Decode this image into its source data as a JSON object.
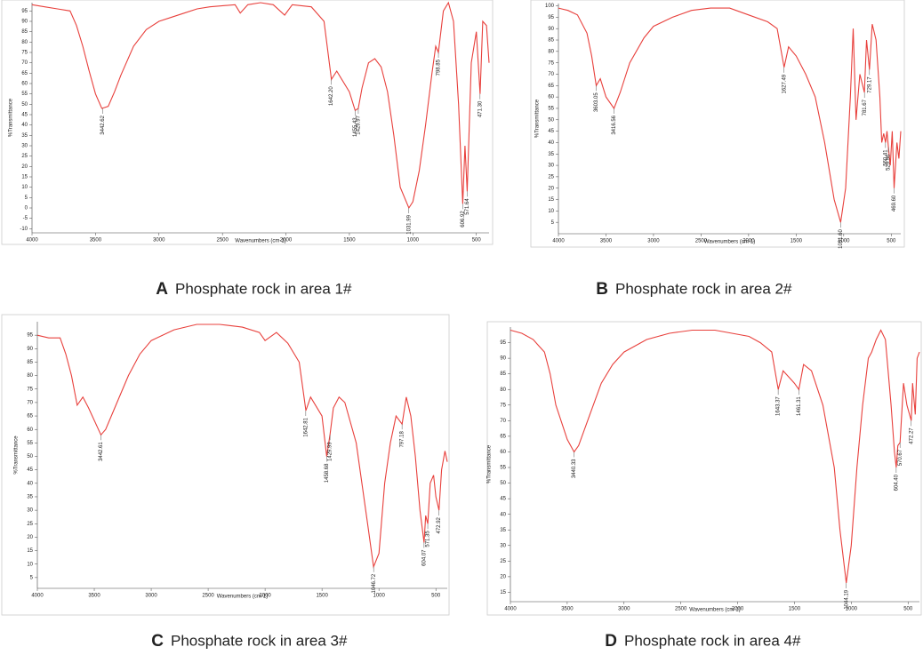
{
  "chart_data": [
    {
      "type": "line",
      "label": "A",
      "title": "Phosphate rock in area 1#",
      "x_label": "Wavenumbers (cm-1)",
      "y_label": "%Transmittance",
      "color": "#e8403c",
      "x": [
        4000,
        3900,
        3800,
        3700,
        3650,
        3600,
        3550,
        3500,
        3450,
        3400,
        3350,
        3300,
        3200,
        3100,
        3000,
        2900,
        2800,
        2700,
        2600,
        2400,
        2360,
        2300,
        2200,
        2100,
        2010,
        1950,
        1800,
        1700,
        1642,
        1600,
        1500,
        1455,
        1430,
        1400,
        1350,
        1300,
        1250,
        1200,
        1150,
        1100,
        1032,
        1000,
        950,
        900,
        850,
        820,
        799,
        760,
        720,
        680,
        640,
        607,
        590,
        572,
        540,
        500,
        471,
        450,
        420,
        400
      ],
      "values": [
        98,
        97,
        96,
        95,
        88,
        78,
        66,
        55,
        48,
        49,
        56,
        64,
        78,
        86,
        90,
        92,
        94,
        96,
        97,
        98,
        94,
        98,
        99,
        98,
        93,
        98,
        97,
        90,
        62,
        66,
        56,
        47,
        48,
        58,
        70,
        72,
        68,
        56,
        35,
        10,
        0,
        3,
        18,
        40,
        65,
        78,
        75,
        95,
        99,
        90,
        50,
        2,
        30,
        8,
        70,
        85,
        55,
        90,
        88,
        70
      ],
      "xlim": [
        4000,
        400
      ],
      "ylim": [
        -12,
        99
      ],
      "xticks": [
        4000,
        3500,
        3000,
        2500,
        2000,
        1500,
        1000,
        500
      ],
      "yticks": [
        -10,
        -5,
        0,
        5,
        10,
        15,
        20,
        25,
        30,
        35,
        40,
        45,
        50,
        55,
        60,
        65,
        70,
        75,
        80,
        85,
        90,
        95
      ],
      "annotations": [
        {
          "x": 3442.62,
          "y": 48,
          "label": "3442.62"
        },
        {
          "x": 1642.2,
          "y": 62,
          "label": "1642.20"
        },
        {
          "x": 1455.43,
          "y": 47,
          "label": "1455.43"
        },
        {
          "x": 1429.97,
          "y": 48,
          "label": "1429.97"
        },
        {
          "x": 798.85,
          "y": 75,
          "label": "798.85"
        },
        {
          "x": 1031.99,
          "y": 0,
          "label": "1031.99"
        },
        {
          "x": 606.92,
          "y": 2,
          "label": "606.92"
        },
        {
          "x": 571.64,
          "y": 8,
          "label": "571.64"
        },
        {
          "x": 471.3,
          "y": 55,
          "label": "471.30"
        }
      ]
    },
    {
      "type": "line",
      "label": "B",
      "title": "Phosphate rock in area 2#",
      "x_label": "Wavenumbers (cm-1)",
      "y_label": "%Transmittance",
      "color": "#e8403c",
      "x": [
        4000,
        3900,
        3800,
        3700,
        3650,
        3603,
        3560,
        3500,
        3416,
        3350,
        3250,
        3100,
        3000,
        2800,
        2600,
        2400,
        2200,
        2000,
        1800,
        1700,
        1627,
        1580,
        1500,
        1400,
        1300,
        1200,
        1100,
        1032,
        980,
        930,
        900,
        870,
        830,
        782,
        760,
        729,
        700,
        660,
        620,
        600,
        580,
        560,
        545,
        530,
        510,
        490,
        470,
        440,
        420,
        400
      ],
      "values": [
        99,
        98,
        96,
        88,
        78,
        65,
        68,
        60,
        55,
        62,
        75,
        86,
        91,
        95,
        98,
        99,
        99,
        96,
        93,
        90,
        73,
        82,
        78,
        70,
        60,
        40,
        15,
        5,
        20,
        60,
        90,
        50,
        70,
        62,
        85,
        72,
        92,
        85,
        60,
        40,
        44,
        40,
        45,
        38,
        30,
        45,
        20,
        40,
        33,
        45
      ],
      "xlim": [
        4000,
        400
      ],
      "ylim": [
        0,
        101
      ],
      "xticks": [
        4000,
        3500,
        3000,
        2500,
        2000,
        1500,
        1000,
        500
      ],
      "yticks": [
        5,
        10,
        15,
        20,
        25,
        30,
        35,
        40,
        45,
        50,
        55,
        60,
        65,
        70,
        75,
        80,
        85,
        90,
        95,
        100
      ],
      "annotations": [
        {
          "x": 3603.05,
          "y": 65,
          "label": "3603.05"
        },
        {
          "x": 3416.56,
          "y": 55,
          "label": "3416.56"
        },
        {
          "x": 1627.49,
          "y": 73,
          "label": "1627.49"
        },
        {
          "x": 1031.6,
          "y": 5,
          "label": "1031.60"
        },
        {
          "x": 781.67,
          "y": 62,
          "label": "781.67"
        },
        {
          "x": 729.17,
          "y": 72,
          "label": "729.17"
        },
        {
          "x": 560.41,
          "y": 40,
          "label": "560.41"
        },
        {
          "x": 529.96,
          "y": 38,
          "label": "529.96"
        },
        {
          "x": 469.6,
          "y": 20,
          "label": "469.60"
        }
      ]
    },
    {
      "type": "line",
      "label": "C",
      "title": "Phosphate rock in area 3#",
      "x_label": "Wavenumbers (cm-1)",
      "y_label": "%Transmittance",
      "color": "#e8403c",
      "x": [
        4000,
        3900,
        3800,
        3750,
        3700,
        3650,
        3600,
        3550,
        3442,
        3400,
        3300,
        3200,
        3100,
        3000,
        2800,
        2600,
        2400,
        2200,
        2050,
        2000,
        1900,
        1800,
        1700,
        1642,
        1600,
        1500,
        1459,
        1430,
        1400,
        1350,
        1300,
        1200,
        1100,
        1047,
        1000,
        950,
        900,
        850,
        797,
        760,
        720,
        680,
        640,
        604,
        590,
        571,
        550,
        520,
        500,
        473,
        450,
        420,
        400
      ],
      "values": [
        95,
        94,
        94,
        88,
        80,
        69,
        72,
        68,
        58,
        60,
        70,
        80,
        88,
        93,
        97,
        99,
        99,
        98,
        96,
        93,
        96,
        92,
        85,
        67,
        72,
        65,
        50,
        58,
        68,
        72,
        70,
        55,
        25,
        9,
        14,
        40,
        55,
        65,
        62,
        72,
        65,
        50,
        30,
        18,
        28,
        25,
        40,
        43,
        35,
        30,
        45,
        52,
        48
      ],
      "xlim": [
        4000,
        400
      ],
      "ylim": [
        1,
        100
      ],
      "xticks": [
        4000,
        3500,
        3000,
        2500,
        2000,
        1500,
        1000,
        500
      ],
      "yticks": [
        5,
        10,
        15,
        20,
        25,
        30,
        35,
        40,
        45,
        50,
        55,
        60,
        65,
        70,
        75,
        80,
        85,
        90,
        95
      ],
      "annotations": [
        {
          "x": 3442.61,
          "y": 58,
          "label": "3442.61"
        },
        {
          "x": 1642.81,
          "y": 67,
          "label": "1642.81"
        },
        {
          "x": 1458.68,
          "y": 50,
          "label": "1458.68"
        },
        {
          "x": 1429.99,
          "y": 58,
          "label": "1429.99"
        },
        {
          "x": 797.18,
          "y": 62,
          "label": "797.18"
        },
        {
          "x": 1046.72,
          "y": 9,
          "label": "1046.72"
        },
        {
          "x": 604.07,
          "y": 18,
          "label": "604.07"
        },
        {
          "x": 571.35,
          "y": 25,
          "label": "571.35"
        },
        {
          "x": 472.92,
          "y": 30,
          "label": "472.92"
        }
      ]
    },
    {
      "type": "line",
      "label": "D",
      "title": "Phosphate rock in area 4#",
      "x_label": "Wavenumbers (cm-1)",
      "y_label": "%Transmittance",
      "color": "#e8403c",
      "x": [
        4000,
        3900,
        3800,
        3750,
        3700,
        3650,
        3600,
        3500,
        3440,
        3400,
        3300,
        3200,
        3100,
        3000,
        2800,
        2600,
        2400,
        2200,
        2050,
        1900,
        1800,
        1700,
        1643,
        1600,
        1500,
        1461,
        1420,
        1350,
        1250,
        1150,
        1100,
        1044,
        1000,
        950,
        900,
        850,
        820,
        780,
        740,
        700,
        650,
        620,
        604,
        590,
        571,
        540,
        510,
        472,
        460,
        437,
        420,
        400
      ],
      "values": [
        99,
        98,
        96,
        94,
        92,
        85,
        75,
        64,
        60,
        62,
        72,
        82,
        88,
        92,
        96,
        98,
        99,
        99,
        98,
        97,
        95,
        92,
        80,
        86,
        82,
        80,
        88,
        86,
        75,
        55,
        35,
        18,
        30,
        55,
        75,
        90,
        92,
        96,
        99,
        96,
        75,
        60,
        55,
        62,
        63,
        82,
        75,
        70,
        82,
        72,
        90,
        92
      ],
      "xlim": [
        4000,
        400
      ],
      "ylim": [
        12,
        100
      ],
      "xticks": [
        4000,
        3500,
        3000,
        2500,
        2000,
        1500,
        1000,
        500
      ],
      "yticks": [
        15,
        20,
        25,
        30,
        35,
        40,
        45,
        50,
        55,
        60,
        65,
        70,
        75,
        80,
        85,
        90,
        95
      ],
      "annotations": [
        {
          "x": 3440.33,
          "y": 60,
          "label": "3440.33"
        },
        {
          "x": 1643.37,
          "y": 80,
          "label": "1643.37"
        },
        {
          "x": 1461.31,
          "y": 80,
          "label": "1461.31"
        },
        {
          "x": 1044.19,
          "y": 18,
          "label": "1044.19"
        },
        {
          "x": 604.4,
          "y": 55,
          "label": "604.40"
        },
        {
          "x": 570.67,
          "y": 63,
          "label": "570.67"
        },
        {
          "x": 472.27,
          "y": 70,
          "label": "472.27"
        }
      ]
    }
  ]
}
